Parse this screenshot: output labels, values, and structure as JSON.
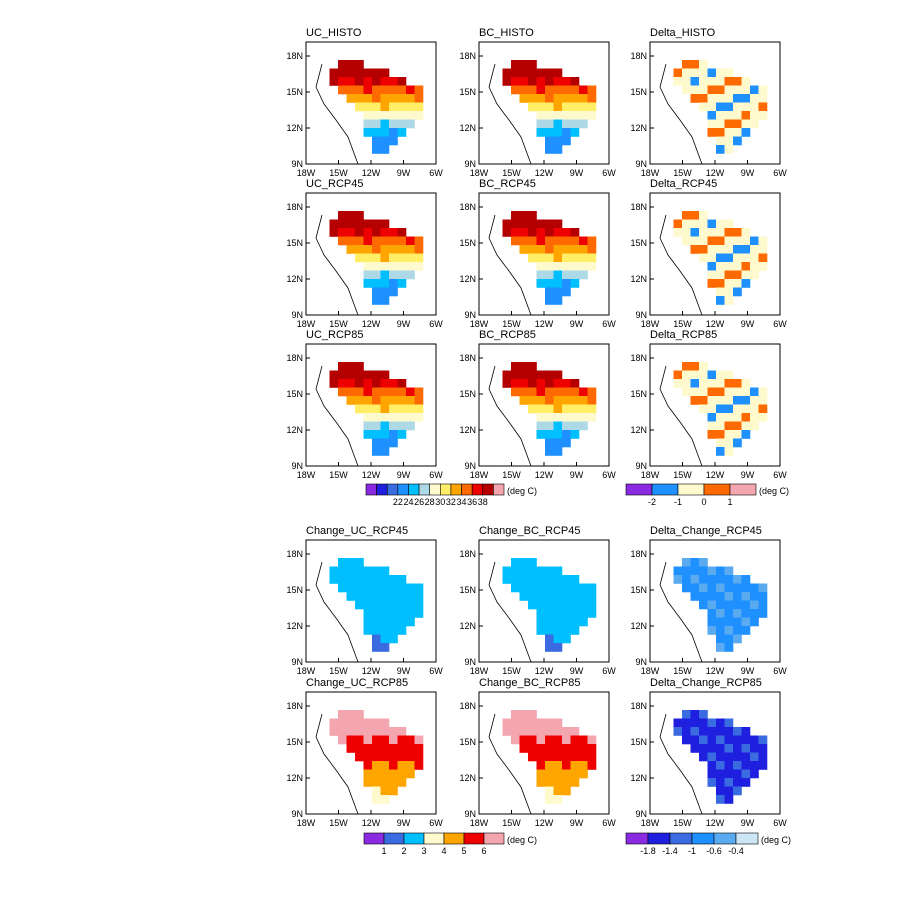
{
  "figure": {
    "units_label": "(deg C)",
    "xticks": [
      "18W",
      "15W",
      "12W",
      "9W",
      "6W"
    ],
    "yticks": [
      "18N",
      "15N",
      "12N",
      "9N"
    ],
    "colorbars": [
      {
        "id": "cb-abs",
        "labels": [
          "22",
          "24",
          "26",
          "28",
          "30",
          "32",
          "34",
          "36",
          "38"
        ],
        "colors": [
          "#8a2be2",
          "#1f1fe0",
          "#3a6be0",
          "#1e90ff",
          "#00bfff",
          "#add8e6",
          "#fffacd",
          "#ffee66",
          "#ffa500",
          "#ff6a00",
          "#ee0000",
          "#b40000",
          "#f4a6b0"
        ]
      },
      {
        "id": "cb-delta",
        "labels": [
          "-2",
          "-1",
          "0",
          "1"
        ],
        "colors": [
          "#8a2be2",
          "#1e90ff",
          "#fffacd",
          "#ff6a00",
          "#f4a6b0"
        ]
      },
      {
        "id": "cb-change",
        "labels": [
          "1",
          "2",
          "3",
          "4",
          "5",
          "6"
        ],
        "colors": [
          "#8a2be2",
          "#3a6be0",
          "#00bfff",
          "#fffacd",
          "#ffa500",
          "#ee0000",
          "#f4a6b0"
        ]
      },
      {
        "id": "cb-dchange",
        "labels": [
          "-1.8",
          "-1.4",
          "-1",
          "-0.6",
          "-0.4"
        ],
        "colors": [
          "#8a2be2",
          "#1f1fe0",
          "#3a6be0",
          "#1e90ff",
          "#5aaaf0",
          "#cce6f5"
        ]
      }
    ]
  },
  "chart_data": [
    {
      "type": "heatmap",
      "title": "UC_HISTO",
      "xlim": [
        -18,
        -6
      ],
      "ylim": [
        9,
        19
      ],
      "scale": "absolute",
      "values_range": [
        28,
        36
      ],
      "colorbar": "cb-abs"
    },
    {
      "type": "heatmap",
      "title": "BC_HISTO",
      "xlim": [
        -18,
        -6
      ],
      "ylim": [
        9,
        19
      ],
      "scale": "absolute",
      "values_range": [
        26,
        32
      ],
      "colorbar": "cb-abs"
    },
    {
      "type": "heatmap",
      "title": "Delta_HISTO",
      "xlim": [
        -18,
        -6
      ],
      "ylim": [
        9,
        19
      ],
      "scale": "delta",
      "values_range": [
        0,
        2
      ],
      "colorbar": "cb-delta"
    },
    {
      "type": "heatmap",
      "title": "UC_RCP45",
      "xlim": [
        -18,
        -6
      ],
      "ylim": [
        9,
        19
      ],
      "scale": "absolute",
      "values_range": [
        28,
        36
      ],
      "colorbar": "cb-abs"
    },
    {
      "type": "heatmap",
      "title": "BC_RCP45",
      "xlim": [
        -18,
        -6
      ],
      "ylim": [
        9,
        19
      ],
      "scale": "absolute",
      "values_range": [
        26,
        34
      ],
      "colorbar": "cb-abs"
    },
    {
      "type": "heatmap",
      "title": "Delta_RCP45",
      "xlim": [
        -18,
        -6
      ],
      "ylim": [
        9,
        19
      ],
      "scale": "delta",
      "values_range": [
        -1,
        1
      ],
      "colorbar": "cb-delta"
    },
    {
      "type": "heatmap",
      "title": "UC_RCP85",
      "xlim": [
        -18,
        -6
      ],
      "ylim": [
        9,
        19
      ],
      "scale": "absolute",
      "values_range": [
        28,
        38
      ],
      "colorbar": "cb-abs"
    },
    {
      "type": "heatmap",
      "title": "BC_RCP85",
      "xlim": [
        -18,
        -6
      ],
      "ylim": [
        9,
        19
      ],
      "scale": "absolute",
      "values_range": [
        28,
        36
      ],
      "colorbar": "cb-abs"
    },
    {
      "type": "heatmap",
      "title": "Delta_RCP85",
      "xlim": [
        -18,
        -6
      ],
      "ylim": [
        9,
        19
      ],
      "scale": "delta",
      "values_range": [
        -2,
        0
      ],
      "colorbar": "cb-delta"
    },
    {
      "type": "heatmap",
      "title": "Change_UC_RCP45",
      "xlim": [
        -18,
        -6
      ],
      "ylim": [
        9,
        19
      ],
      "scale": "change",
      "values_range": [
        1,
        2
      ],
      "colorbar": "cb-change"
    },
    {
      "type": "heatmap",
      "title": "Change_BC_RCP45",
      "xlim": [
        -18,
        -6
      ],
      "ylim": [
        9,
        19
      ],
      "scale": "change",
      "values_range": [
        0,
        2
      ],
      "colorbar": "cb-change"
    },
    {
      "type": "heatmap",
      "title": "Delta_Change_RCP45",
      "xlim": [
        -18,
        -6
      ],
      "ylim": [
        9,
        19
      ],
      "scale": "dchange",
      "values_range": [
        -1,
        -0.4
      ],
      "colorbar": "cb-dchange"
    },
    {
      "type": "heatmap",
      "title": "Change_UC_RCP85",
      "xlim": [
        -18,
        -6
      ],
      "ylim": [
        9,
        19
      ],
      "scale": "change",
      "values_range": [
        3,
        6
      ],
      "colorbar": "cb-change"
    },
    {
      "type": "heatmap",
      "title": "Change_BC_RCP85",
      "xlim": [
        -18,
        -6
      ],
      "ylim": [
        9,
        19
      ],
      "scale": "change",
      "values_range": [
        2,
        5
      ],
      "colorbar": "cb-change"
    },
    {
      "type": "heatmap",
      "title": "Delta_Change_RCP85",
      "xlim": [
        -18,
        -6
      ],
      "ylim": [
        9,
        19
      ],
      "scale": "dchange",
      "values_range": [
        -1.8,
        -0.6
      ],
      "colorbar": "cb-dchange"
    }
  ]
}
